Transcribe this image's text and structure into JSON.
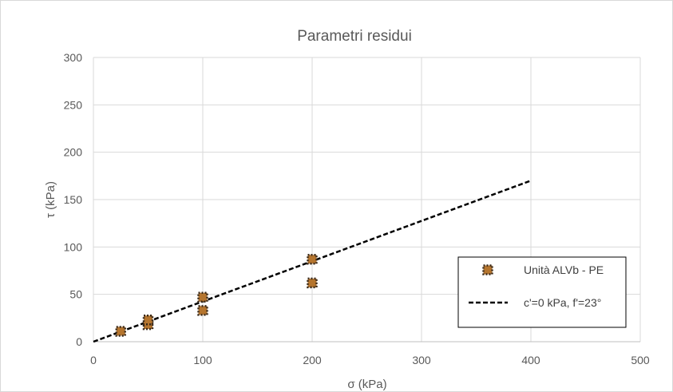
{
  "chart_data": {
    "type": "scatter",
    "title": "Parametri residui",
    "xlabel": "σ (kPa)",
    "ylabel": "τ (kPa)",
    "xlim": [
      0,
      500
    ],
    "ylim": [
      0,
      300
    ],
    "xticks": [
      "0",
      "100",
      "200",
      "300",
      "400",
      "500"
    ],
    "yticks": [
      "0",
      "50",
      "100",
      "150",
      "200",
      "250",
      "300"
    ],
    "grid": true,
    "legend_placement": "right",
    "series": [
      {
        "name": "Unità ALVb - PE",
        "kind": "scatter",
        "color": "#B5752E",
        "x": [
          25,
          50,
          50,
          100,
          100,
          200,
          200
        ],
        "y": [
          11,
          18,
          23,
          33,
          47,
          62,
          87
        ]
      },
      {
        "name": "c'=0 kPa, f'=23°",
        "kind": "line",
        "style": "dashed",
        "color": "#000000",
        "x": [
          0,
          400
        ],
        "y": [
          0,
          170
        ]
      }
    ]
  }
}
